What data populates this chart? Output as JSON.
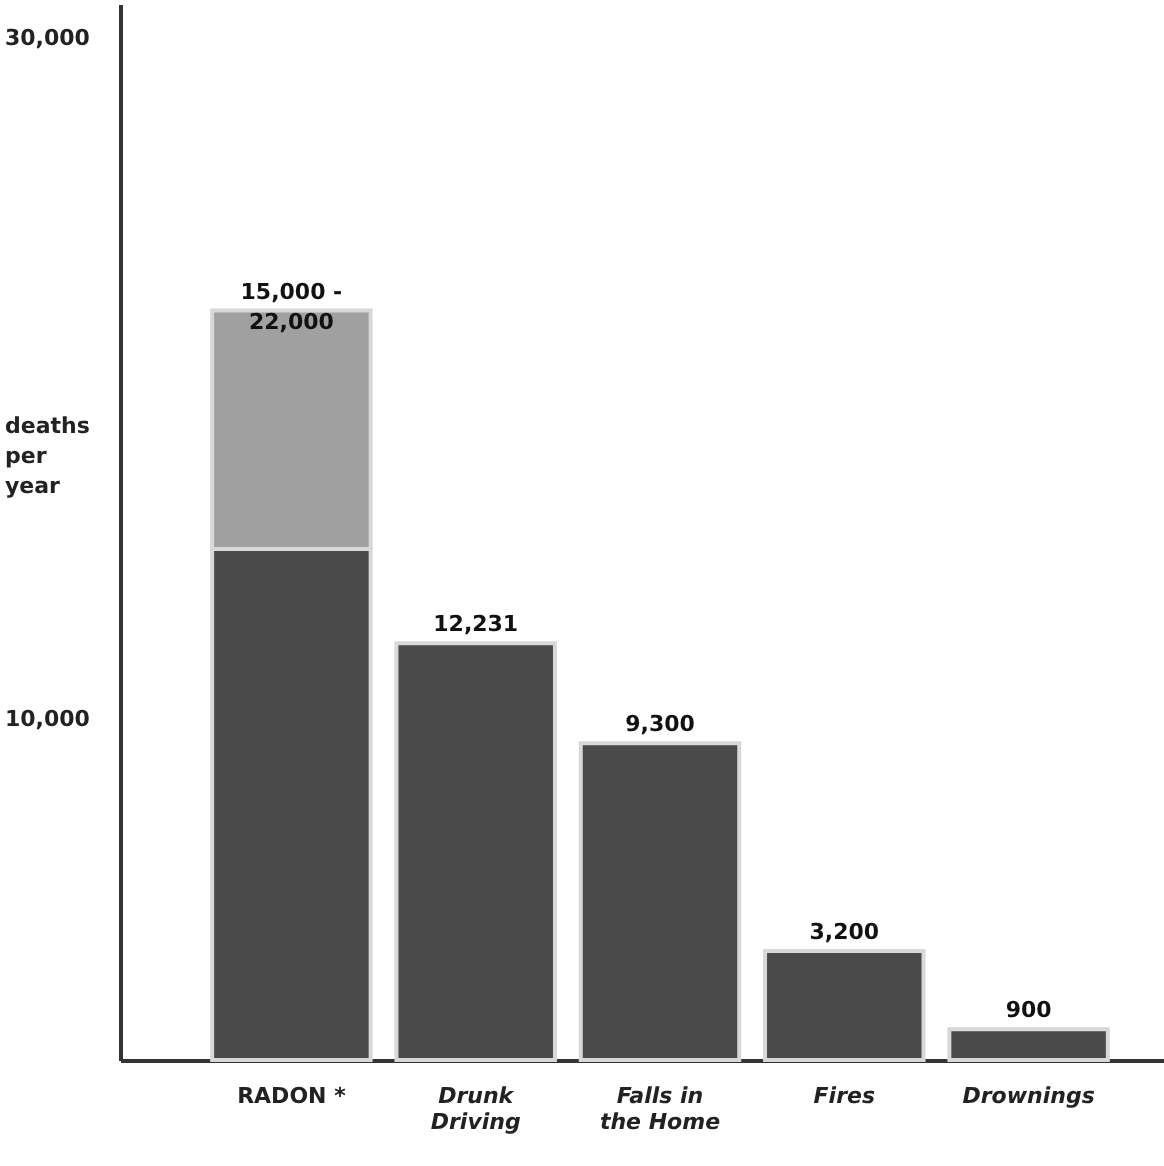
{
  "chart_data": {
    "type": "bar",
    "stacked": true,
    "ylabel": "deaths per year",
    "categories": [
      "RADON *",
      "Drunk Driving",
      "Falls in the Home",
      "Fires",
      "Drownings"
    ],
    "series": [
      {
        "color": "#4a4a4a",
        "values": [
          15000,
          12231,
          9300,
          3200,
          900
        ]
      },
      {
        "color": "#a0a0a0",
        "values": [
          7000,
          null,
          null,
          null,
          null
        ]
      }
    ],
    "totals": [
      "15,000 - 22,000",
      "12,231",
      "9,300",
      "3,200",
      "900"
    ],
    "ylim": [
      0,
      31000
    ],
    "yticks": [
      {
        "value": 10000,
        "label": "10,000"
      },
      {
        "value": 30000,
        "label": "30,000"
      }
    ],
    "grid": false
  }
}
